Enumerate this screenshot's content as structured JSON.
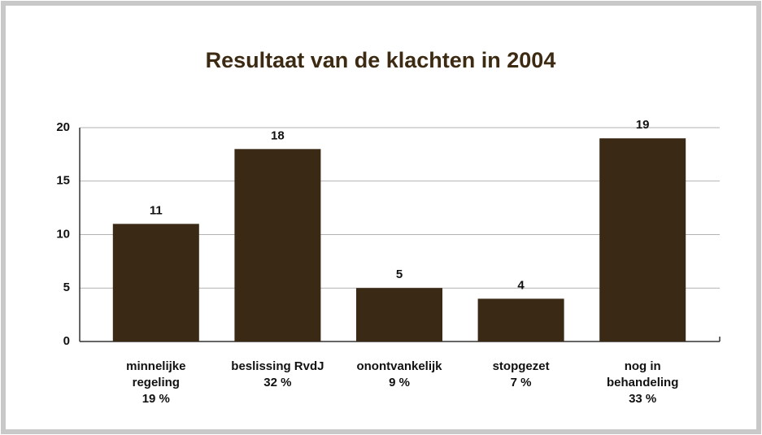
{
  "chart_data": {
    "type": "bar",
    "title": "Resultaat van de klachten in 2004",
    "categories": [
      "minnelijke\nregeling",
      "beslissing RvdJ",
      "onontvankelijk",
      "stopgezet",
      "nog in\nbehandeling"
    ],
    "shares": [
      "19 %",
      "32 %",
      "9 %",
      "7 %",
      "33 %"
    ],
    "values": [
      11,
      18,
      5,
      4,
      19
    ],
    "color": "#3a2914",
    "ylim": [
      0,
      20
    ],
    "yticks": [
      0,
      5,
      10,
      15,
      20
    ],
    "grid": true
  }
}
